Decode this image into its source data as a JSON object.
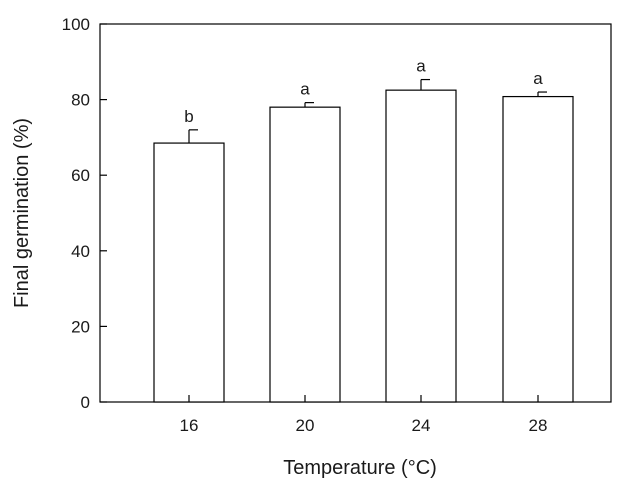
{
  "chart_data": {
    "type": "bar",
    "title": "",
    "xlabel": "Temperature (°C)",
    "ylabel": "Final germination (%)",
    "categories": [
      "16",
      "20",
      "24",
      "28"
    ],
    "values": [
      68.5,
      78,
      82.5,
      80.8
    ],
    "error": [
      3.5,
      1.2,
      2.8,
      1.2
    ],
    "significance": [
      "b",
      "a",
      "a",
      "a"
    ],
    "ylim": [
      0,
      100
    ],
    "yticks": [
      0,
      20,
      40,
      60,
      80,
      100
    ],
    "grid": false,
    "legend": "none",
    "bar_fill": "#ffffff",
    "bar_edge": "#000000"
  }
}
